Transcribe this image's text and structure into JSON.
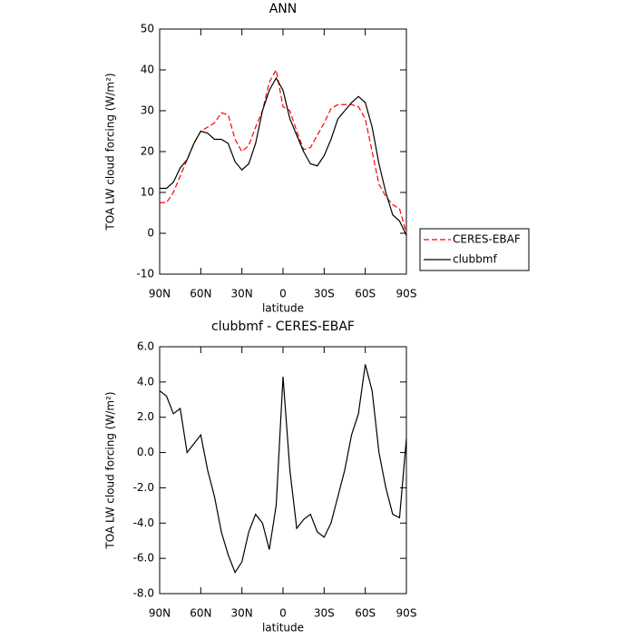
{
  "chart_data": [
    {
      "type": "line",
      "title": "ANN",
      "xlabel": "latitude",
      "ylabel": "TOA LW cloud forcing (W/m²)",
      "x": [
        90,
        85,
        80,
        75,
        70,
        65,
        60,
        55,
        50,
        45,
        40,
        35,
        30,
        25,
        20,
        15,
        10,
        5,
        0,
        -5,
        -10,
        -15,
        -20,
        -25,
        -30,
        -35,
        -40,
        -45,
        -50,
        -55,
        -60,
        -65,
        -70,
        -75,
        -80,
        -85,
        -90
      ],
      "series": [
        {
          "name": "CERES-EBAF",
          "color": "#ff0000",
          "dashed": true,
          "values": [
            7.5,
            7.5,
            10,
            14,
            18,
            22,
            25,
            26,
            27,
            29.5,
            29,
            23,
            20,
            21.5,
            26,
            30,
            37,
            40,
            31,
            30,
            25,
            20.5,
            21,
            24,
            27,
            30.5,
            31.5,
            31.5,
            31.5,
            31,
            28,
            20,
            12,
            9,
            7,
            6,
            0
          ]
        },
        {
          "name": "clubbmf",
          "color": "#000000",
          "dashed": false,
          "values": [
            11,
            11,
            12.5,
            16,
            18,
            22,
            25,
            24.5,
            23,
            23,
            22,
            17.5,
            15.5,
            17,
            22,
            30,
            35,
            38,
            35,
            28,
            24,
            20,
            17,
            16.5,
            19,
            23,
            28,
            30,
            32,
            33.5,
            32,
            26,
            17,
            10,
            4.5,
            3,
            -0.5
          ]
        }
      ],
      "xlim": [
        90,
        -90
      ],
      "xticks": [
        {
          "value": 90,
          "label": "90N"
        },
        {
          "value": 60,
          "label": "60N"
        },
        {
          "value": 30,
          "label": "30N"
        },
        0,
        {
          "value": -30,
          "label": "30S"
        },
        {
          "value": -60,
          "label": "60S"
        },
        {
          "value": -90,
          "label": "90S"
        }
      ],
      "ylim": [
        -10,
        50
      ],
      "yticks": [
        -10,
        0,
        10,
        20,
        30,
        40,
        50
      ],
      "legend": "outside-right"
    },
    {
      "type": "line",
      "title": "clubbmf - CERES-EBAF",
      "xlabel": "latitude",
      "ylabel": "TOA LW cloud forcing (W/m²)",
      "x": [
        90,
        85,
        80,
        75,
        70,
        65,
        60,
        55,
        50,
        45,
        40,
        35,
        30,
        25,
        20,
        15,
        10,
        5,
        0,
        -5,
        -10,
        -15,
        -20,
        -25,
        -30,
        -35,
        -40,
        -45,
        -50,
        -55,
        -60,
        -65,
        -70,
        -75,
        -80,
        -85,
        -90
      ],
      "series": [
        {
          "color": "#000000",
          "dashed": false,
          "values": [
            3.5,
            3.2,
            2.2,
            2.5,
            0,
            0.5,
            1,
            -1,
            -2.5,
            -4.5,
            -5.8,
            -6.8,
            -6.2,
            -4.5,
            -3.5,
            -4,
            -5.5,
            -3,
            4.3,
            -1,
            -4.3,
            -3.8,
            -3.5,
            -4.5,
            -4.8,
            -4,
            -2.5,
            -1,
            1,
            2.2,
            5,
            3.5,
            0,
            -2,
            -3.5,
            -3.7,
            0.8
          ]
        }
      ],
      "xlim": [
        90,
        -90
      ],
      "xticks": [
        {
          "value": 90,
          "label": "90N"
        },
        {
          "value": 60,
          "label": "60N"
        },
        {
          "value": 30,
          "label": "30N"
        },
        0,
        {
          "value": -30,
          "label": "30S"
        },
        {
          "value": -60,
          "label": "60S"
        },
        {
          "value": -90,
          "label": "90S"
        }
      ],
      "ylim": [
        -8,
        6
      ],
      "yticks": [
        {
          "value": -8,
          "label": "-8.0"
        },
        {
          "value": -6,
          "label": "-6.0"
        },
        {
          "value": -4,
          "label": "-4.0"
        },
        {
          "value": -2,
          "label": "-2.0"
        },
        {
          "value": 0,
          "label": "0.0"
        },
        {
          "value": 2,
          "label": "2.0"
        },
        {
          "value": 4,
          "label": "4.0"
        },
        {
          "value": 6,
          "label": "6.0"
        }
      ]
    }
  ]
}
